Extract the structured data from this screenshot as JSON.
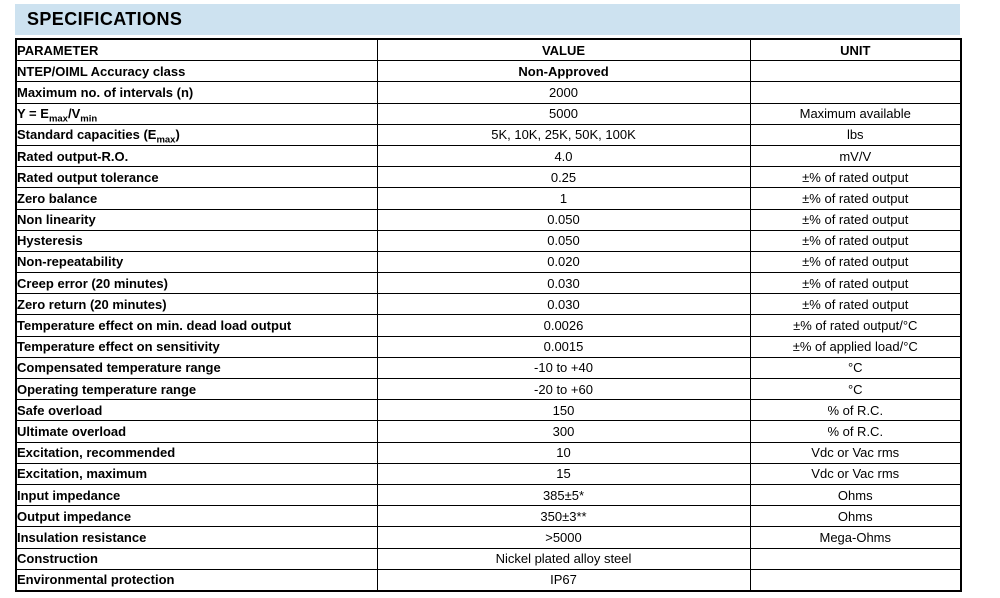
{
  "title": "SPECIFICATIONS",
  "colors": {
    "banner_bg": "#cde2f0",
    "border": "#000000",
    "text": "#000000"
  },
  "table": {
    "headers": [
      "PARAMETER",
      "VALUE",
      "UNIT"
    ],
    "rows": [
      {
        "param": "NTEP/OIML Accuracy class",
        "value": "Non-Approved",
        "unit": "",
        "value_bold": true
      },
      {
        "param": "Maximum no. of intervals (n)",
        "value": "2000",
        "unit": ""
      },
      {
        "param": "Y = E_{max}/V_{min}",
        "value": "5000",
        "unit": "Maximum available"
      },
      {
        "param": "Standard capacities (E_{max})",
        "value": "5K, 10K, 25K, 50K, 100K",
        "unit": "lbs"
      },
      {
        "param": "Rated output-R.O.",
        "value": "4.0",
        "unit": "mV/V"
      },
      {
        "param": "Rated output tolerance",
        "value": "0.25",
        "unit": "±% of rated output"
      },
      {
        "param": "Zero balance",
        "value": "1",
        "unit": "±% of rated output"
      },
      {
        "param": "Non linearity",
        "value": "0.050",
        "unit": "±% of rated output"
      },
      {
        "param": "Hysteresis",
        "value": "0.050",
        "unit": "±% of rated output"
      },
      {
        "param": "Non-repeatability",
        "value": "0.020",
        "unit": "±% of rated output"
      },
      {
        "param": "Creep error (20 minutes)",
        "value": "0.030",
        "unit": "±% of rated output"
      },
      {
        "param": "Zero return (20 minutes)",
        "value": "0.030",
        "unit": "±% of rated output"
      },
      {
        "param": "Temperature effect on min. dead load output",
        "value": "0.0026",
        "unit": "±% of rated output/°C"
      },
      {
        "param": "Temperature effect on sensitivity",
        "value": "0.0015",
        "unit": "±% of applied load/°C"
      },
      {
        "param": "Compensated temperature range",
        "value": "-10 to +40",
        "unit": "°C"
      },
      {
        "param": "Operating temperature range",
        "value": "-20 to +60",
        "unit": "°C"
      },
      {
        "param": "Safe overload",
        "value": "150",
        "unit": "% of R.C."
      },
      {
        "param": "Ultimate overload",
        "value": "300",
        "unit": "% of R.C."
      },
      {
        "param": "Excitation, recommended",
        "value": "10",
        "unit": "Vdc or Vac rms"
      },
      {
        "param": "Excitation, maximum",
        "value": "15",
        "unit": "Vdc or Vac rms"
      },
      {
        "param": "Input impedance",
        "value": "385±5*",
        "unit": "Ohms"
      },
      {
        "param": "Output impedance",
        "value": "350±3**",
        "unit": "Ohms"
      },
      {
        "param": "Insulation resistance",
        "value": ">5000",
        "unit": "Mega-Ohms"
      },
      {
        "param": "Construction",
        "value": "Nickel plated alloy steel",
        "unit": ""
      },
      {
        "param": "Environmental protection",
        "value": "IP67",
        "unit": ""
      }
    ]
  }
}
